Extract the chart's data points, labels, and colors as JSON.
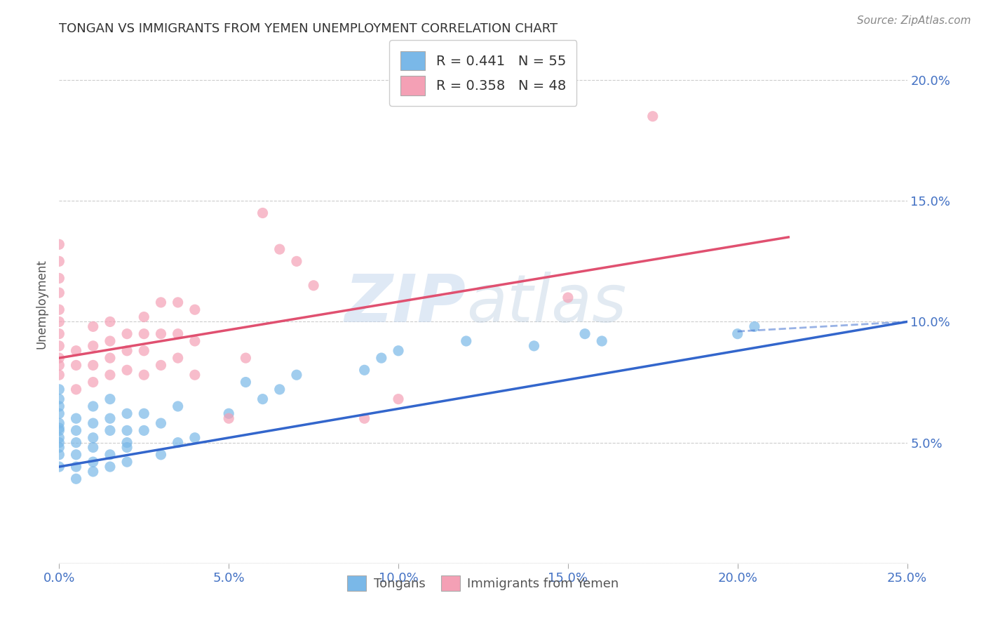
{
  "title": "TONGAN VS IMMIGRANTS FROM YEMEN UNEMPLOYMENT CORRELATION CHART",
  "source": "Source: ZipAtlas.com",
  "ylabel": "Unemployment",
  "xlim": [
    0.0,
    0.25
  ],
  "ylim": [
    0.0,
    0.215
  ],
  "yticks": [
    0.05,
    0.1,
    0.15,
    0.2
  ],
  "ytick_labels": [
    "5.0%",
    "10.0%",
    "15.0%",
    "20.0%"
  ],
  "xticks": [
    0.0,
    0.05,
    0.1,
    0.15,
    0.2,
    0.25
  ],
  "xtick_labels": [
    "0.0%",
    "5.0%",
    "10.0%",
    "15.0%",
    "20.0%",
    "25.0%"
  ],
  "blue_color": "#7ab8e8",
  "pink_color": "#f4a0b5",
  "trendline_blue": "#3366cc",
  "trendline_pink": "#e05070",
  "legend_label1": "R = 0.441   N = 55",
  "legend_label2": "R = 0.358   N = 48",
  "legend_label_tongans": "Tongans",
  "legend_label_yemen": "Immigrants from Yemen",
  "watermark_zip": "ZIP",
  "watermark_atlas": "atlas",
  "blue_scatter": [
    [
      0.0,
      0.04
    ],
    [
      0.0,
      0.045
    ],
    [
      0.0,
      0.048
    ],
    [
      0.0,
      0.052
    ],
    [
      0.0,
      0.055
    ],
    [
      0.0,
      0.058
    ],
    [
      0.0,
      0.062
    ],
    [
      0.0,
      0.065
    ],
    [
      0.0,
      0.068
    ],
    [
      0.0,
      0.072
    ],
    [
      0.0,
      0.05
    ],
    [
      0.0,
      0.056
    ],
    [
      0.005,
      0.035
    ],
    [
      0.005,
      0.04
    ],
    [
      0.005,
      0.045
    ],
    [
      0.005,
      0.05
    ],
    [
      0.005,
      0.055
    ],
    [
      0.005,
      0.06
    ],
    [
      0.01,
      0.038
    ],
    [
      0.01,
      0.042
    ],
    [
      0.01,
      0.048
    ],
    [
      0.01,
      0.052
    ],
    [
      0.01,
      0.058
    ],
    [
      0.01,
      0.065
    ],
    [
      0.015,
      0.04
    ],
    [
      0.015,
      0.045
    ],
    [
      0.015,
      0.055
    ],
    [
      0.015,
      0.06
    ],
    [
      0.015,
      0.068
    ],
    [
      0.02,
      0.042
    ],
    [
      0.02,
      0.048
    ],
    [
      0.02,
      0.055
    ],
    [
      0.02,
      0.062
    ],
    [
      0.02,
      0.05
    ],
    [
      0.025,
      0.055
    ],
    [
      0.025,
      0.062
    ],
    [
      0.03,
      0.045
    ],
    [
      0.03,
      0.058
    ],
    [
      0.035,
      0.05
    ],
    [
      0.035,
      0.065
    ],
    [
      0.04,
      0.052
    ],
    [
      0.05,
      0.062
    ],
    [
      0.055,
      0.075
    ],
    [
      0.06,
      0.068
    ],
    [
      0.065,
      0.072
    ],
    [
      0.07,
      0.078
    ],
    [
      0.09,
      0.08
    ],
    [
      0.095,
      0.085
    ],
    [
      0.1,
      0.088
    ],
    [
      0.12,
      0.092
    ],
    [
      0.14,
      0.09
    ],
    [
      0.155,
      0.095
    ],
    [
      0.16,
      0.092
    ],
    [
      0.2,
      0.095
    ],
    [
      0.205,
      0.098
    ]
  ],
  "pink_scatter": [
    [
      0.0,
      0.078
    ],
    [
      0.0,
      0.082
    ],
    [
      0.0,
      0.085
    ],
    [
      0.0,
      0.09
    ],
    [
      0.0,
      0.095
    ],
    [
      0.0,
      0.1
    ],
    [
      0.0,
      0.105
    ],
    [
      0.0,
      0.112
    ],
    [
      0.0,
      0.118
    ],
    [
      0.0,
      0.125
    ],
    [
      0.0,
      0.132
    ],
    [
      0.005,
      0.072
    ],
    [
      0.005,
      0.082
    ],
    [
      0.005,
      0.088
    ],
    [
      0.01,
      0.075
    ],
    [
      0.01,
      0.082
    ],
    [
      0.01,
      0.09
    ],
    [
      0.01,
      0.098
    ],
    [
      0.015,
      0.078
    ],
    [
      0.015,
      0.085
    ],
    [
      0.015,
      0.092
    ],
    [
      0.015,
      0.1
    ],
    [
      0.02,
      0.08
    ],
    [
      0.02,
      0.088
    ],
    [
      0.02,
      0.095
    ],
    [
      0.025,
      0.078
    ],
    [
      0.025,
      0.088
    ],
    [
      0.025,
      0.095
    ],
    [
      0.025,
      0.102
    ],
    [
      0.03,
      0.082
    ],
    [
      0.03,
      0.095
    ],
    [
      0.03,
      0.108
    ],
    [
      0.035,
      0.085
    ],
    [
      0.035,
      0.095
    ],
    [
      0.035,
      0.108
    ],
    [
      0.04,
      0.078
    ],
    [
      0.04,
      0.092
    ],
    [
      0.04,
      0.105
    ],
    [
      0.05,
      0.06
    ],
    [
      0.055,
      0.085
    ],
    [
      0.06,
      0.145
    ],
    [
      0.065,
      0.13
    ],
    [
      0.07,
      0.125
    ],
    [
      0.075,
      0.115
    ],
    [
      0.09,
      0.06
    ],
    [
      0.1,
      0.068
    ],
    [
      0.15,
      0.11
    ],
    [
      0.175,
      0.185
    ]
  ]
}
